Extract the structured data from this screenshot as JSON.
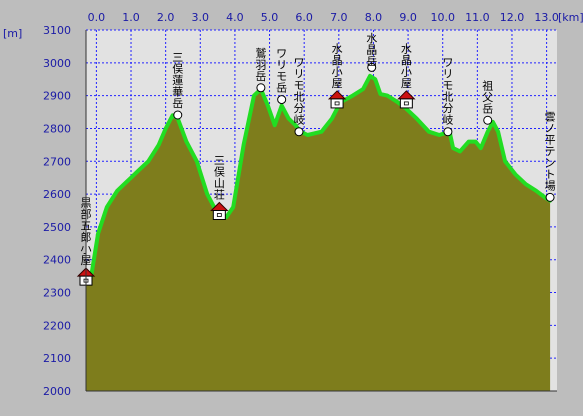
{
  "chart_data": {
    "type": "area",
    "x_unit": "[km]",
    "y_unit": "[m]",
    "xlim": [
      -0.3,
      13.3
    ],
    "ylim": [
      2000,
      3100
    ],
    "x_ticks": [
      {
        "value": 0.0,
        "label": "0.0"
      },
      {
        "value": 1.0,
        "label": "1.0"
      },
      {
        "value": 2.0,
        "label": "2.0"
      },
      {
        "value": 3.0,
        "label": "3.0"
      },
      {
        "value": 4.0,
        "label": "4.0"
      },
      {
        "value": 5.0,
        "label": "5.0"
      },
      {
        "value": 6.0,
        "label": "6.0"
      },
      {
        "value": 7.0,
        "label": "7.0"
      },
      {
        "value": 8.0,
        "label": "8.0"
      },
      {
        "value": 9.0,
        "label": "9.0"
      },
      {
        "value": 10.0,
        "label": "10.0"
      },
      {
        "value": 11.0,
        "label": "11.0"
      },
      {
        "value": 12.0,
        "label": "12.0"
      },
      {
        "value": 13.0,
        "label": "13.0"
      }
    ],
    "y_ticks": [
      {
        "value": 2000,
        "label": "2000"
      },
      {
        "value": 2100,
        "label": "2100"
      },
      {
        "value": 2200,
        "label": "2200"
      },
      {
        "value": 2300,
        "label": "2300"
      },
      {
        "value": 2400,
        "label": "2400"
      },
      {
        "value": 2500,
        "label": "2500"
      },
      {
        "value": 2600,
        "label": "2600"
      },
      {
        "value": 2700,
        "label": "2700"
      },
      {
        "value": 2800,
        "label": "2800"
      },
      {
        "value": 2900,
        "label": "2900"
      },
      {
        "value": 3000,
        "label": "3000"
      },
      {
        "value": 3100,
        "label": "3100"
      }
    ],
    "grid": true,
    "profile": {
      "x": [
        -0.3,
        -0.15,
        0.05,
        0.3,
        0.6,
        0.8,
        1.0,
        1.2,
        1.5,
        1.8,
        2.0,
        2.2,
        2.35,
        2.6,
        2.9,
        3.2,
        3.45,
        3.75,
        3.95,
        4.25,
        4.55,
        4.75,
        4.95,
        5.15,
        5.35,
        5.55,
        5.75,
        5.9,
        6.1,
        6.5,
        6.8,
        7.05,
        7.4,
        7.7,
        7.9,
        8.05,
        8.2,
        8.4,
        8.7,
        8.95,
        9.25,
        9.6,
        9.9,
        10.2,
        10.3,
        10.5,
        10.75,
        10.95,
        11.1,
        11.3,
        11.45,
        11.6,
        11.8,
        12.1,
        12.4,
        12.7,
        12.95,
        13.1
      ],
      "y": [
        2350,
        2350,
        2480,
        2560,
        2610,
        2630,
        2650,
        2670,
        2700,
        2750,
        2800,
        2840,
        2830,
        2760,
        2700,
        2600,
        2550,
        2530,
        2560,
        2750,
        2900,
        2920,
        2870,
        2810,
        2870,
        2830,
        2810,
        2790,
        2780,
        2790,
        2830,
        2880,
        2900,
        2920,
        2960,
        2950,
        2905,
        2900,
        2880,
        2860,
        2830,
        2790,
        2780,
        2790,
        2740,
        2730,
        2760,
        2760,
        2740,
        2790,
        2820,
        2790,
        2700,
        2660,
        2630,
        2610,
        2590,
        2580
      ],
      "fill_color": "#7e7d1c",
      "line_color": "#22dd22"
    },
    "waypoints": [
      {
        "name": "黒部五郎小屋",
        "x": -0.3,
        "y": 2350,
        "kind": "hut"
      },
      {
        "name": "三俣蓮華岳",
        "x": 2.35,
        "y": 2841,
        "kind": "peak"
      },
      {
        "name": "三俣山荘",
        "x": 3.55,
        "y": 2550,
        "kind": "hut"
      },
      {
        "name": "鷲羽岳",
        "x": 4.75,
        "y": 2924,
        "kind": "peak"
      },
      {
        "name": "ワリモ岳",
        "x": 5.35,
        "y": 2888,
        "kind": "peak"
      },
      {
        "name": "ワリモ北分岐",
        "x": 5.85,
        "y": 2790,
        "kind": "junction"
      },
      {
        "name": "水晶小屋",
        "x": 6.95,
        "y": 2890,
        "kind": "hut"
      },
      {
        "name": "水晶岳",
        "x": 7.95,
        "y": 2986,
        "kind": "peak"
      },
      {
        "name": "水晶小屋",
        "x": 8.95,
        "y": 2890,
        "kind": "hut"
      },
      {
        "name": "ワリモ北分岐",
        "x": 10.15,
        "y": 2790,
        "kind": "junction"
      },
      {
        "name": "祖父岳",
        "x": 11.3,
        "y": 2825,
        "kind": "peak"
      },
      {
        "name": "雲ノ平テント場",
        "x": 13.1,
        "y": 2590,
        "kind": "camp"
      }
    ]
  }
}
